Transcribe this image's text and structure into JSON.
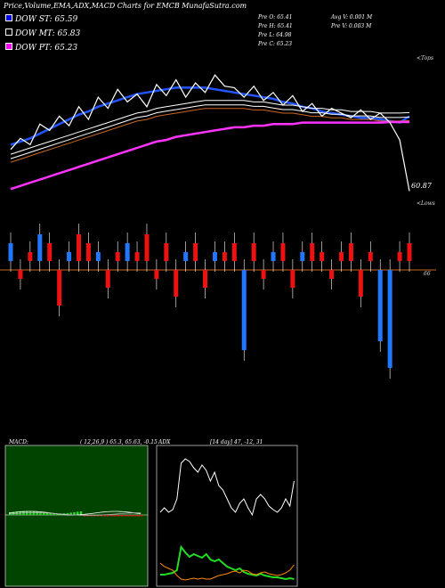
{
  "title": "Price,Volume,EMA,ADX,MACD Charts for EMCB MunafaSutra.com",
  "legend": [
    {
      "label": "DOW ST: 65.59",
      "color": "#0000ff"
    },
    {
      "label": "DOW MT: 65.83",
      "color": "#000000"
    },
    {
      "label": "DOW PT: 65.23",
      "color": "#ff00ff"
    }
  ],
  "stats": {
    "prev_open": "Pre  O: 65.41",
    "prev_high": "Pre  H: 65.41",
    "prev_low": "Pre  L: 64.98",
    "prev_close": "Pre  C: 65.23",
    "avg_volume": "Avg V: 0.001 M",
    "prev_volume": "Pre  V: 0.003 M"
  },
  "top_label": "<Tops",
  "lows_label": "<Lows",
  "last_price_label": "60.87",
  "level_label": "66",
  "macd_header": "MACD:",
  "macd_values": "( 12,26,9 ) 65.3, 65.63, -0.15",
  "adx_header": "ADX",
  "adx_values": "[14 day] 47, -12, 31",
  "colors": {
    "background": "#000000",
    "up": "#2277ff",
    "down": "#ee1111",
    "ema_short": "#2255ff",
    "ema_long": "#ff33ff",
    "level_line": "#cc6622",
    "macd_panel_bg": "#004400",
    "adx_green": "#22dd22",
    "adx_orange": "#ff8800"
  },
  "chart_data": {
    "type": "line",
    "price_series": {
      "name": "Price",
      "values": [
        63.5,
        64.2,
        63.8,
        65.1,
        64.7,
        65.6,
        65.0,
        66.2,
        65.4,
        66.8,
        66.1,
        67.3,
        66.5,
        67.0,
        66.2,
        67.6,
        66.9,
        67.9,
        66.8,
        67.7,
        67.1,
        68.2,
        67.5,
        67.4,
        66.8,
        67.5,
        66.6,
        67.1,
        66.3,
        66.9,
        65.9,
        66.4,
        65.6,
        66.1,
        65.8,
        65.5,
        66.0,
        65.4,
        65.8,
        65.2,
        64.1,
        60.87
      ]
    },
    "ema_series": [
      {
        "name": "DOW ST",
        "values": [
          63.8,
          64.0,
          64.2,
          64.5,
          64.8,
          65.1,
          65.4,
          65.7,
          65.9,
          66.2,
          66.4,
          66.6,
          66.8,
          67.0,
          67.1,
          67.2,
          67.3,
          67.4,
          67.4,
          67.4,
          67.4,
          67.3,
          67.2,
          67.1,
          67.0,
          66.9,
          66.8,
          66.7,
          66.5,
          66.4,
          66.2,
          66.1,
          65.9,
          65.8,
          65.7,
          65.6,
          65.5,
          65.5,
          65.4,
          65.3,
          65.2,
          65.59
        ]
      },
      {
        "name": "DOW MT",
        "values": [
          63.2,
          63.4,
          63.6,
          63.8,
          64.0,
          64.2,
          64.4,
          64.6,
          64.8,
          65.0,
          65.2,
          65.4,
          65.6,
          65.8,
          65.9,
          66.1,
          66.2,
          66.3,
          66.4,
          66.5,
          66.6,
          66.6,
          66.6,
          66.6,
          66.6,
          66.5,
          66.5,
          66.4,
          66.3,
          66.3,
          66.2,
          66.1,
          66.1,
          66.0,
          66.0,
          65.9,
          65.9,
          65.9,
          65.8,
          65.8,
          65.8,
          65.83
        ]
      },
      {
        "name": "DOW PT",
        "values": [
          61.0,
          61.2,
          61.4,
          61.6,
          61.8,
          62.0,
          62.2,
          62.4,
          62.6,
          62.8,
          63.0,
          63.2,
          63.4,
          63.6,
          63.8,
          64.0,
          64.1,
          64.3,
          64.4,
          64.5,
          64.6,
          64.7,
          64.8,
          64.9,
          64.9,
          65.0,
          65.0,
          65.1,
          65.1,
          65.1,
          65.2,
          65.2,
          65.2,
          65.2,
          65.2,
          65.2,
          65.2,
          65.2,
          65.2,
          65.23,
          65.23,
          65.23
        ]
      }
    ],
    "volume_bars": {
      "name": "Volume",
      "values": [
        2,
        -1,
        1,
        3,
        2,
        -4,
        1,
        3,
        2,
        1,
        -2,
        1,
        2,
        1,
        3,
        -1,
        2,
        -3,
        1,
        2,
        -2,
        1,
        1,
        2,
        -9,
        2,
        -1,
        1,
        2,
        -2,
        1,
        2,
        1,
        -1,
        1,
        2,
        -3,
        1,
        -8,
        -11,
        1,
        2
      ],
      "unit": "relative"
    },
    "macd": {
      "macd": 65.3,
      "signal": 65.63,
      "histogram": -0.15,
      "params": [
        12,
        26,
        9
      ]
    },
    "adx": {
      "adx": 47,
      "minus_di": 12,
      "plus_di": 31,
      "period": 14
    }
  }
}
